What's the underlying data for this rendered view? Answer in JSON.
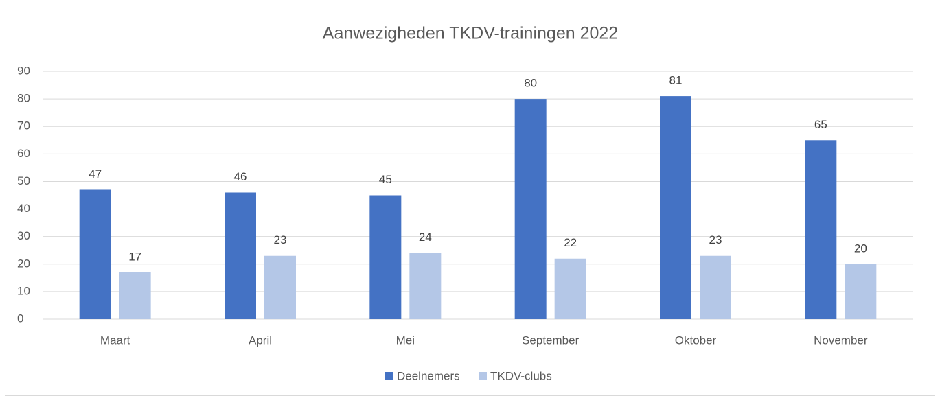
{
  "chart_data": {
    "type": "bar",
    "title": "Aanwezigheden TKDV-trainingen 2022",
    "categories": [
      "Maart",
      "April",
      "Mei",
      "September",
      "Oktober",
      "November"
    ],
    "series": [
      {
        "name": "Deelnemers",
        "color": "#4472c4",
        "values": [
          47,
          46,
          45,
          80,
          81,
          65
        ]
      },
      {
        "name": "TKDV-clubs",
        "color": "#b4c7e7",
        "values": [
          17,
          23,
          24,
          22,
          23,
          20
        ]
      }
    ],
    "ylim": [
      0,
      90
    ],
    "yticks": [
      0,
      10,
      20,
      30,
      40,
      50,
      60,
      70,
      80,
      90
    ],
    "grid": true,
    "legend": "bottom"
  }
}
